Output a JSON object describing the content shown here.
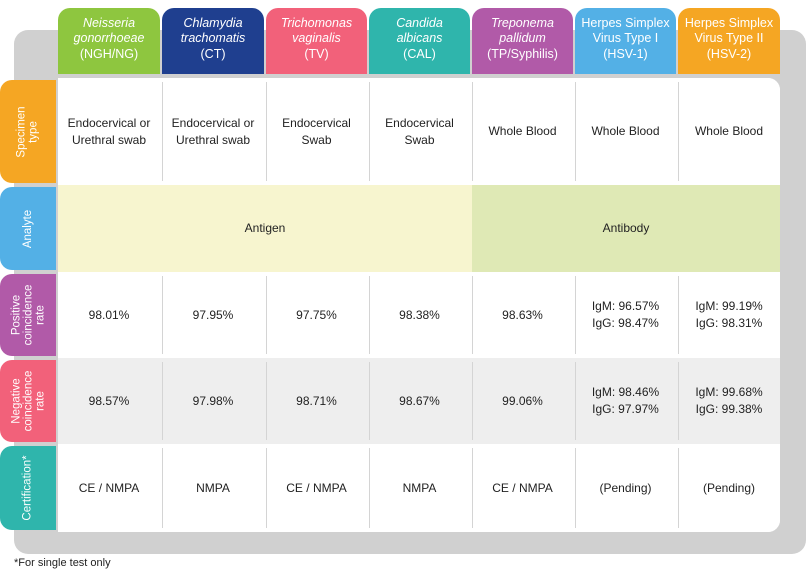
{
  "columns": [
    {
      "l1": "Neisseria",
      "l2": "gonorrhoeae",
      "l3": "(NGH/NG)",
      "italic": true,
      "color": "#8ec63f"
    },
    {
      "l1": "Chlamydia",
      "l2": "trachomatis",
      "l3": "(CT)",
      "italic": true,
      "color": "#1f3f8f"
    },
    {
      "l1": "Trichomonas",
      "l2": "vaginalis",
      "l3": "(TV)",
      "italic": true,
      "color": "#f2617a"
    },
    {
      "l1": "Candida",
      "l2": "albicans",
      "l3": "(CAL)",
      "italic": true,
      "color": "#2fb5ac"
    },
    {
      "l1": "Treponema",
      "l2": "pallidum",
      "l3": "(TP/Syphilis)",
      "italic": true,
      "color": "#b15aa8"
    },
    {
      "l1": "Herpes Simplex",
      "l2": "Virus Type I",
      "l3": "(HSV-1)",
      "italic": false,
      "color": "#53b0e6"
    },
    {
      "l1": "Herpes Simplex",
      "l2": "Virus Type II",
      "l3": "(HSV-2)",
      "italic": false,
      "color": "#f5a623"
    }
  ],
  "rows": {
    "specimen": {
      "label_lines": [
        "Specimen",
        "type"
      ],
      "color": "#f5a623",
      "cells": [
        [
          "Endocervical or",
          "Urethral swab"
        ],
        [
          "Endocervical or",
          "Urethral swab"
        ],
        [
          "Endocervical",
          "Swab"
        ],
        [
          "Endocervical",
          "Swab"
        ],
        [
          "Whole Blood"
        ],
        [
          "Whole Blood"
        ],
        [
          "Whole Blood"
        ]
      ]
    },
    "analyte": {
      "label_lines": [
        "Analyte"
      ],
      "color": "#53b0e6",
      "antigen": "Antigen",
      "antibody": "Antibody"
    },
    "positive": {
      "label_lines": [
        "Positive",
        "coincidence",
        "rate"
      ],
      "color": "#b15aa8",
      "cells": [
        [
          "98.01%"
        ],
        [
          "97.95%"
        ],
        [
          "97.75%"
        ],
        [
          "98.38%"
        ],
        [
          "98.63%"
        ],
        [
          "IgM: 96.57%",
          "IgG: 98.47%"
        ],
        [
          "IgM: 99.19%",
          "IgG: 98.31%"
        ]
      ]
    },
    "negative": {
      "label_lines": [
        "Negative",
        "coincidence",
        "rate"
      ],
      "color": "#f2617a",
      "cells": [
        [
          "98.57%"
        ],
        [
          "97.98%"
        ],
        [
          "98.71%"
        ],
        [
          "98.67%"
        ],
        [
          "99.06%"
        ],
        [
          "IgM: 98.46%",
          "IgG: 97.97%"
        ],
        [
          "IgM: 99.68%",
          "IgG: 99.38%"
        ]
      ]
    },
    "cert": {
      "label_lines": [
        "Certification*"
      ],
      "color": "#2fb5ac",
      "cells": [
        [
          "CE / NMPA"
        ],
        [
          "NMPA"
        ],
        [
          "CE / NMPA"
        ],
        [
          "NMPA"
        ],
        [
          "CE / NMPA"
        ],
        [
          "(Pending)"
        ],
        [
          "(Pending)"
        ]
      ]
    }
  },
  "footnote": "*For single test only"
}
